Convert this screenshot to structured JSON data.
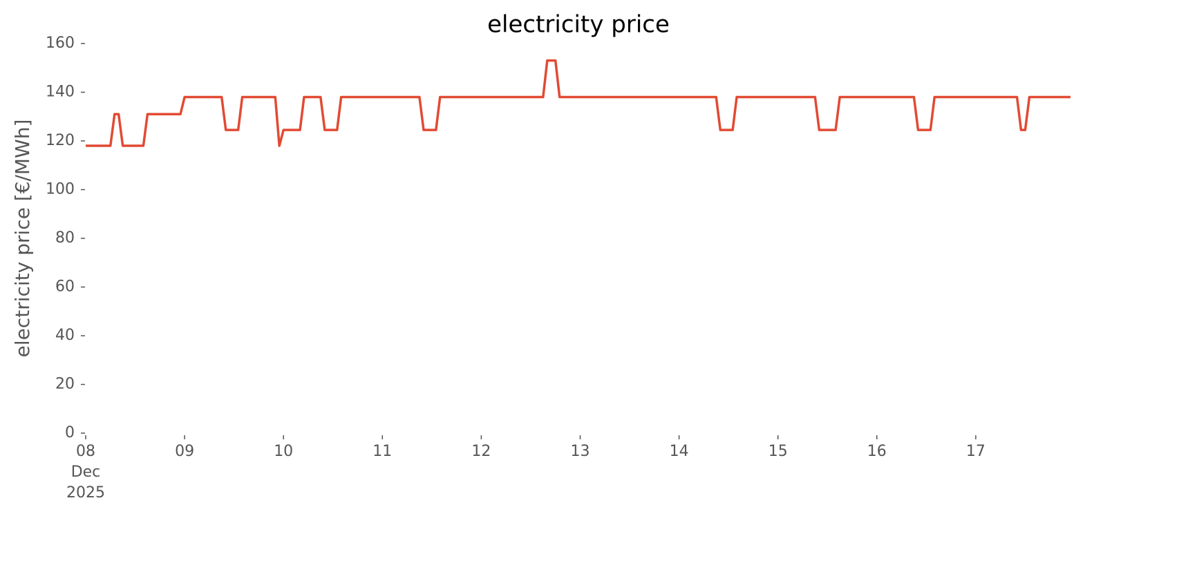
{
  "chart_data": {
    "type": "line",
    "title": "electricity price",
    "ylabel": "electricity price [€/MWh]",
    "x": [
      8,
      8.25,
      8.292,
      8.333,
      8.375,
      8.583,
      8.625,
      8.958,
      9,
      9.375,
      9.417,
      9.542,
      9.583,
      9.917,
      9.958,
      10,
      10.167,
      10.208,
      10.375,
      10.417,
      10.542,
      10.583,
      11.375,
      11.417,
      11.542,
      11.583,
      12.625,
      12.667,
      12.75,
      12.792,
      14.375,
      14.417,
      14.542,
      14.583,
      15.375,
      15.417,
      15.583,
      15.625,
      16.375,
      16.417,
      16.542,
      16.583,
      17.417,
      17.458,
      17.5,
      17.542,
      17.958
    ],
    "values": [
      118,
      118,
      131,
      131,
      118,
      118,
      131,
      131,
      138,
      138,
      124.5,
      124.5,
      138,
      138,
      118,
      124.5,
      124.5,
      138,
      138,
      124.5,
      124.5,
      138,
      138,
      124.5,
      124.5,
      138,
      138,
      153,
      153,
      138,
      138,
      124.5,
      124.5,
      138,
      138,
      124.5,
      124.5,
      138,
      138,
      124.5,
      124.5,
      138,
      138,
      124.5,
      124.5,
      138,
      138
    ],
    "color": "#e24a33",
    "xlim": [
      8,
      17.958
    ],
    "xticks": [
      {
        "value": 8,
        "label": "08\nDec\n2025"
      },
      {
        "value": 9,
        "label": "09"
      },
      10,
      11,
      12,
      13,
      14,
      15,
      16,
      17
    ],
    "ylim": [
      0,
      160
    ],
    "yticks": [
      0,
      20,
      40,
      60,
      80,
      100,
      120,
      140,
      160
    ],
    "grid": false
  }
}
